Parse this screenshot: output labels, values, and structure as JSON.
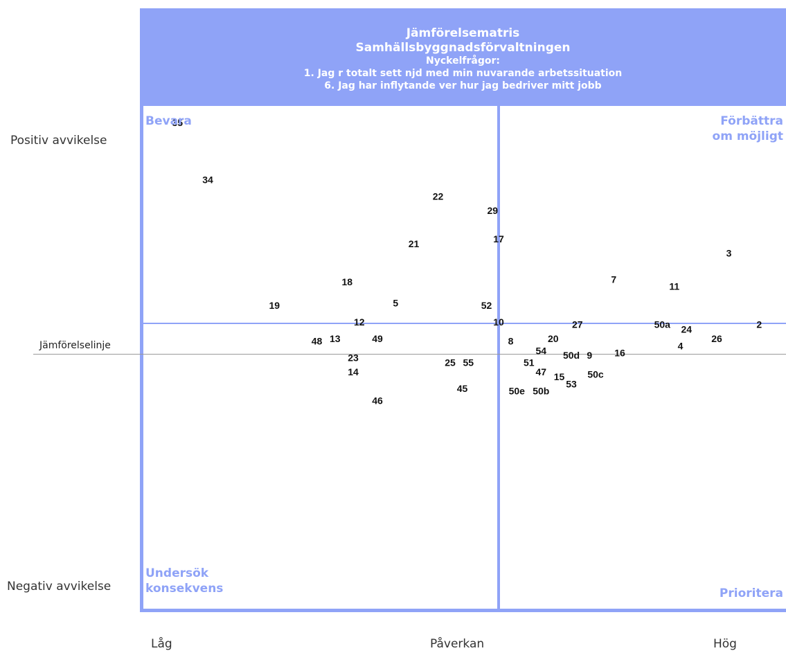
{
  "header": {
    "title": "Jämförelsematris",
    "subtitle": "Samhällsbyggnadsförvaltningen",
    "key_heading": "Nyckelfrågor:",
    "key_q1": "1. Jag r totalt sett njd med min nuvarande arbetssituation",
    "key_q6": "6. Jag har inflytande ver hur jag bedriver mitt jobb"
  },
  "quadrants": {
    "top_left": "Bevara",
    "top_right_1": "Förbättra",
    "top_right_2": "om möjligt",
    "bottom_left_1": "Undersök",
    "bottom_left_2": "konsekvens",
    "bottom_right": "Prioritera"
  },
  "y_labels": {
    "top": "Positiv avvikelse",
    "bottom": "Negativ avvikelse"
  },
  "reference_line_label": "Jämförelselinje",
  "x_labels": {
    "low": "Låg",
    "mid": "Påverkan",
    "high": "Hög"
  },
  "colors": {
    "accent": "#8fa3f7",
    "reference_line": "#999999",
    "point_text": "#111111"
  },
  "chart_data": {
    "type": "scatter",
    "xlabel": "Påverkan",
    "x_tick_labels": [
      "Låg",
      "Påverkan",
      "Hög"
    ],
    "y_tick_labels": [
      "Positiv avvikelse",
      "Negativ avvikelse"
    ],
    "reference_line": "Jämförelselinje",
    "xlim": [
      0,
      1
    ],
    "ylim": [
      -1,
      1
    ],
    "points": [
      {
        "label": "35",
        "x": 0.03,
        "y": 0.97
      },
      {
        "label": "34",
        "x": 0.08,
        "y": 0.73
      },
      {
        "label": "22",
        "x": 0.46,
        "y": 0.66
      },
      {
        "label": "29",
        "x": 0.55,
        "y": 0.6
      },
      {
        "label": "17",
        "x": 0.56,
        "y": 0.48
      },
      {
        "label": "21",
        "x": 0.42,
        "y": 0.46
      },
      {
        "label": "3",
        "x": 0.94,
        "y": 0.42
      },
      {
        "label": "7",
        "x": 0.75,
        "y": 0.31
      },
      {
        "label": "11",
        "x": 0.85,
        "y": 0.28
      },
      {
        "label": "18",
        "x": 0.31,
        "y": 0.3
      },
      {
        "label": "5",
        "x": 0.39,
        "y": 0.21
      },
      {
        "label": "52",
        "x": 0.54,
        "y": 0.2
      },
      {
        "label": "19",
        "x": 0.19,
        "y": 0.2
      },
      {
        "label": "12",
        "x": 0.33,
        "y": 0.13
      },
      {
        "label": "10",
        "x": 0.56,
        "y": 0.13
      },
      {
        "label": "27",
        "x": 0.69,
        "y": 0.12
      },
      {
        "label": "50a",
        "x": 0.83,
        "y": 0.12
      },
      {
        "label": "24",
        "x": 0.87,
        "y": 0.1
      },
      {
        "label": "2",
        "x": 0.99,
        "y": 0.12
      },
      {
        "label": "26",
        "x": 0.92,
        "y": 0.06
      },
      {
        "label": "4",
        "x": 0.86,
        "y": 0.03
      },
      {
        "label": "48",
        "x": 0.26,
        "y": 0.05
      },
      {
        "label": "13",
        "x": 0.29,
        "y": 0.06
      },
      {
        "label": "49",
        "x": 0.36,
        "y": 0.06
      },
      {
        "label": "8",
        "x": 0.58,
        "y": 0.05
      },
      {
        "label": "20",
        "x": 0.65,
        "y": 0.06
      },
      {
        "label": "54",
        "x": 0.63,
        "y": 0.01
      },
      {
        "label": "16",
        "x": 0.76,
        "y": 0.0
      },
      {
        "label": "50d",
        "x": 0.68,
        "y": -0.01
      },
      {
        "label": "9",
        "x": 0.71,
        "y": -0.01
      },
      {
        "label": "23",
        "x": 0.32,
        "y": -0.02
      },
      {
        "label": "25",
        "x": 0.48,
        "y": -0.04
      },
      {
        "label": "55",
        "x": 0.51,
        "y": -0.04
      },
      {
        "label": "51",
        "x": 0.61,
        "y": -0.04
      },
      {
        "label": "14",
        "x": 0.32,
        "y": -0.08
      },
      {
        "label": "47",
        "x": 0.63,
        "y": -0.08
      },
      {
        "label": "50c",
        "x": 0.72,
        "y": -0.09
      },
      {
        "label": "15",
        "x": 0.66,
        "y": -0.1
      },
      {
        "label": "53",
        "x": 0.68,
        "y": -0.13
      },
      {
        "label": "45",
        "x": 0.5,
        "y": -0.15
      },
      {
        "label": "50e",
        "x": 0.59,
        "y": -0.16
      },
      {
        "label": "50b",
        "x": 0.63,
        "y": -0.16
      },
      {
        "label": "46",
        "x": 0.36,
        "y": -0.2
      }
    ]
  }
}
